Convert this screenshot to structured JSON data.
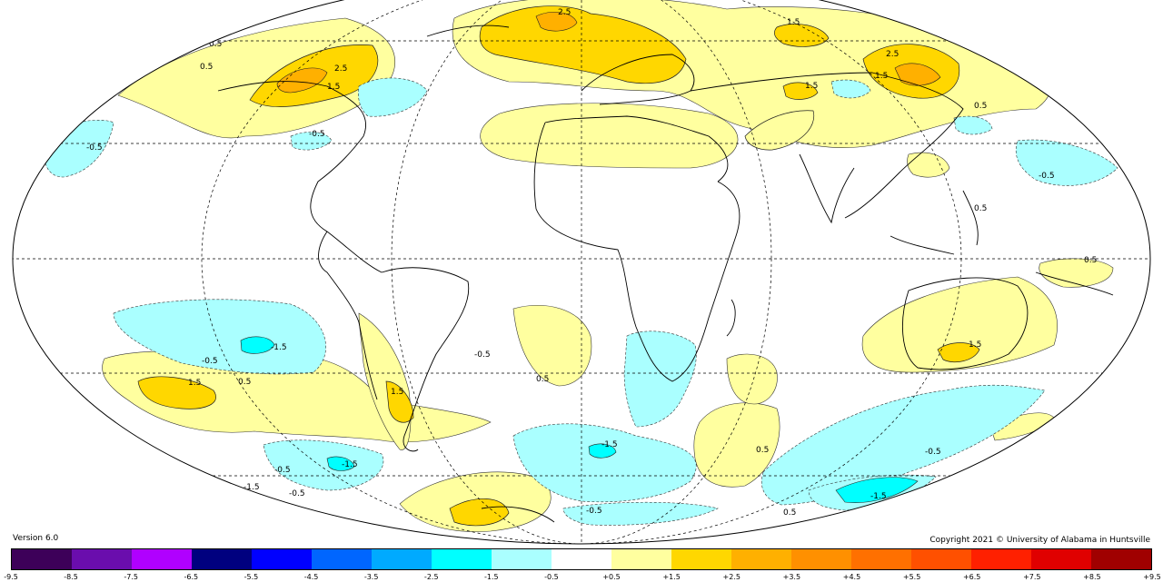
{
  "version_text": "Version 6.0",
  "copyright_text": "Copyright 2021 © University of Alabama in Huntsville",
  "colorbar": {
    "colors": [
      "#3d0059",
      "#6a0dad",
      "#b000ff",
      "#00007f",
      "#0000ff",
      "#0066ff",
      "#00aaff",
      "#00ffff",
      "#aaffff",
      "#ffffff",
      "#ffff9f",
      "#ffd700",
      "#ffb000",
      "#ff9000",
      "#ff7000",
      "#ff5000",
      "#ff2000",
      "#e00000",
      "#a00000"
    ],
    "ticks": [
      "-9.5",
      "-8.5",
      "-7.5",
      "-6.5",
      "-5.5",
      "-4.5",
      "-3.5",
      "-2.5",
      "-1.5",
      "-0.5",
      "+0.5",
      "+1.5",
      "+2.5",
      "+3.5",
      "+4.5",
      "+5.5",
      "+6.5",
      "+7.5",
      "+8.5",
      "+9.5"
    ]
  },
  "contour_labels": [
    "2.5",
    "1.5",
    "0.5",
    "-0.5",
    "-1.5"
  ]
}
